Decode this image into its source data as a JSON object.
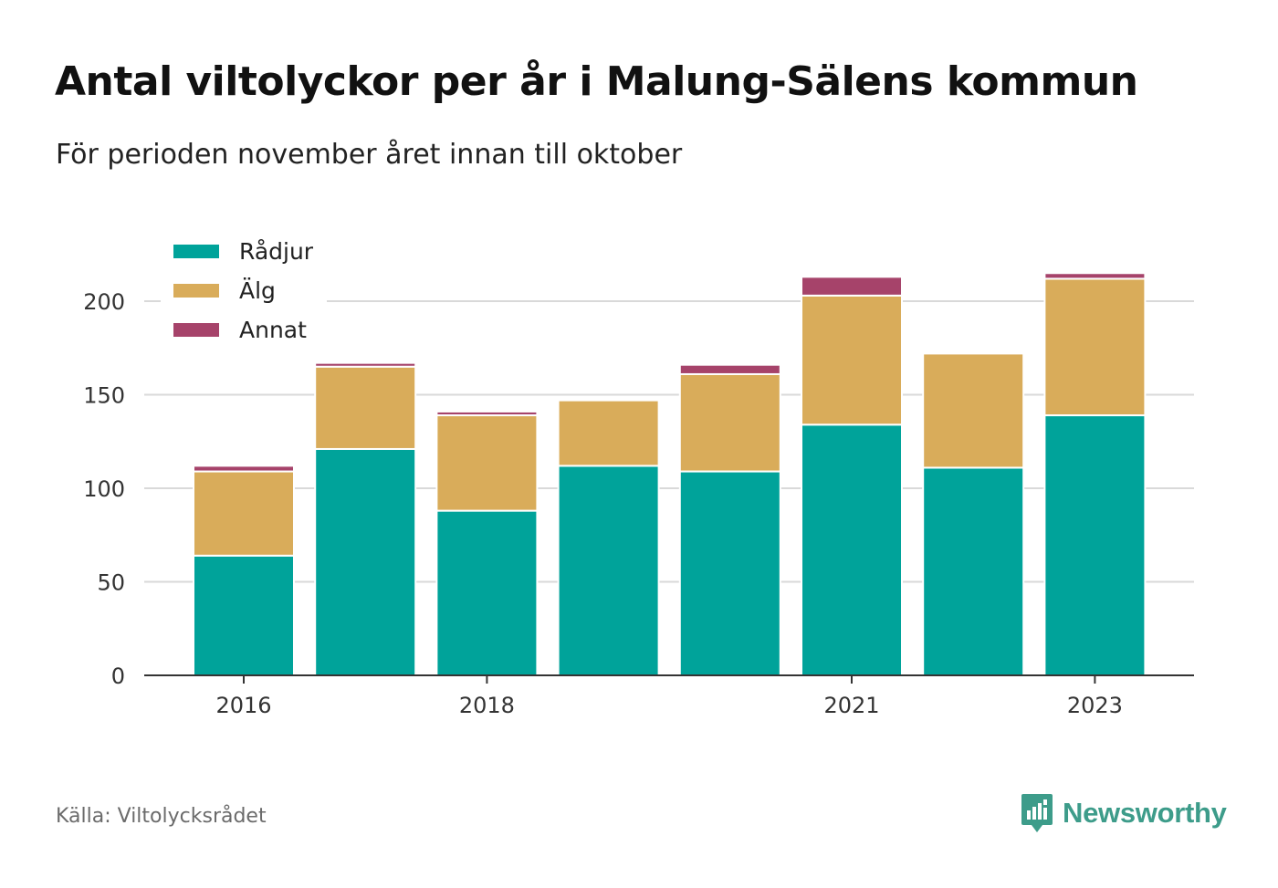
{
  "header": {
    "title": "Antal viltolyckor per år i Malung-Sälens kommun",
    "subtitle": "För perioden november året innan till oktober"
  },
  "footer": {
    "source": "Källa: Viltolycksrådet",
    "brand": "Newsworthy"
  },
  "colors": {
    "radjur": "#00a39a",
    "alg": "#d9ac5a",
    "annat": "#a6436a",
    "grid": "#d9d9d9",
    "axis": "#333333"
  },
  "chart_data": {
    "type": "bar",
    "stacked": true,
    "categories": [
      "2016",
      "2017",
      "2018",
      "2019",
      "2020",
      "2021",
      "2022",
      "2023"
    ],
    "x_tick_labels": [
      "2016",
      "",
      "2018",
      "",
      "",
      "2021",
      "",
      "2023"
    ],
    "series": [
      {
        "name": "Rådjur",
        "color": "#00a39a",
        "values": [
          64,
          121,
          88,
          112,
          109,
          134,
          111,
          139
        ]
      },
      {
        "name": "Älg",
        "color": "#d9ac5a",
        "values": [
          45,
          44,
          51,
          35,
          52,
          69,
          61,
          73
        ]
      },
      {
        "name": "Annat",
        "color": "#a6436a",
        "values": [
          3,
          2,
          2,
          0,
          5,
          10,
          0,
          3
        ]
      }
    ],
    "ylim": [
      0,
      220
    ],
    "yticks": [
      0,
      50,
      100,
      150,
      200
    ],
    "grid": true,
    "legend_position": "top-left"
  }
}
